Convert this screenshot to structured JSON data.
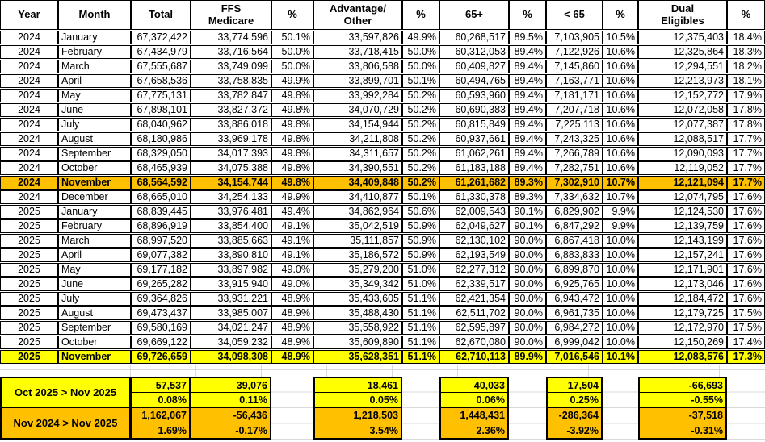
{
  "colors": {
    "row_highlight_2024_nov": "#FFC000",
    "row_highlight_2025_nov": "#FFFF00",
    "summary_oct_block": "#FFFF00",
    "summary_nov_block": "#FFC000",
    "border": "#000000",
    "gridline": "#DADADA"
  },
  "table": {
    "columns": [
      {
        "label": "Year"
      },
      {
        "label": "Month"
      },
      {
        "label": "Total"
      },
      {
        "label": "FFS\nMedicare"
      },
      {
        "label": "%"
      },
      {
        "label": "Advantage/\nOther"
      },
      {
        "label": "%"
      },
      {
        "label": "65+"
      },
      {
        "label": "%"
      },
      {
        "label": "< 65"
      },
      {
        "label": "%"
      },
      {
        "label": "Dual\nEligibles"
      },
      {
        "label": "%"
      }
    ],
    "rows": [
      {
        "hl": "",
        "cells": [
          "2024",
          "January",
          "67,372,422",
          "33,774,596",
          "50.1%",
          "33,597,826",
          "49.9%",
          "60,268,517",
          "89.5%",
          "7,103,905",
          "10.5%",
          "12,375,403",
          "18.4%"
        ]
      },
      {
        "hl": "",
        "cells": [
          "2024",
          "February",
          "67,434,979",
          "33,716,564",
          "50.0%",
          "33,718,415",
          "50.0%",
          "60,312,053",
          "89.4%",
          "7,122,926",
          "10.6%",
          "12,325,864",
          "18.3%"
        ]
      },
      {
        "hl": "",
        "cells": [
          "2024",
          "March",
          "67,555,687",
          "33,749,099",
          "50.0%",
          "33,806,588",
          "50.0%",
          "60,409,827",
          "89.4%",
          "7,145,860",
          "10.6%",
          "12,294,551",
          "18.2%"
        ]
      },
      {
        "hl": "",
        "cells": [
          "2024",
          "April",
          "67,658,536",
          "33,758,835",
          "49.9%",
          "33,899,701",
          "50.1%",
          "60,494,765",
          "89.4%",
          "7,163,771",
          "10.6%",
          "12,213,973",
          "18.1%"
        ]
      },
      {
        "hl": "",
        "cells": [
          "2024",
          "May",
          "67,775,131",
          "33,782,847",
          "49.8%",
          "33,992,284",
          "50.2%",
          "60,593,960",
          "89.4%",
          "7,181,171",
          "10.6%",
          "12,152,772",
          "17.9%"
        ]
      },
      {
        "hl": "",
        "cells": [
          "2024",
          "June",
          "67,898,101",
          "33,827,372",
          "49.8%",
          "34,070,729",
          "50.2%",
          "60,690,383",
          "89.4%",
          "7,207,718",
          "10.6%",
          "12,072,058",
          "17.8%"
        ]
      },
      {
        "hl": "",
        "cells": [
          "2024",
          "July",
          "68,040,962",
          "33,886,018",
          "49.8%",
          "34,154,944",
          "50.2%",
          "60,815,849",
          "89.4%",
          "7,225,113",
          "10.6%",
          "12,077,387",
          "17.8%"
        ]
      },
      {
        "hl": "",
        "cells": [
          "2024",
          "August",
          "68,180,986",
          "33,969,178",
          "49.8%",
          "34,211,808",
          "50.2%",
          "60,937,661",
          "89.4%",
          "7,243,325",
          "10.6%",
          "12,088,517",
          "17.7%"
        ]
      },
      {
        "hl": "",
        "cells": [
          "2024",
          "September",
          "68,329,050",
          "34,017,393",
          "49.8%",
          "34,311,657",
          "50.2%",
          "61,062,261",
          "89.4%",
          "7,266,789",
          "10.6%",
          "12,090,093",
          "17.7%"
        ]
      },
      {
        "hl": "",
        "cells": [
          "2024",
          "October",
          "68,465,939",
          "34,075,388",
          "49.8%",
          "34,390,551",
          "50.2%",
          "61,183,188",
          "89.4%",
          "7,282,751",
          "10.6%",
          "12,119,052",
          "17.7%"
        ]
      },
      {
        "hl": "orange",
        "cells": [
          "2024",
          "November",
          "68,564,592",
          "34,154,744",
          "49.8%",
          "34,409,848",
          "50.2%",
          "61,261,682",
          "89.3%",
          "7,302,910",
          "10.7%",
          "12,121,094",
          "17.7%"
        ]
      },
      {
        "hl": "",
        "cells": [
          "2024",
          "December",
          "68,665,010",
          "34,254,133",
          "49.9%",
          "34,410,877",
          "50.1%",
          "61,330,378",
          "89.3%",
          "7,334,632",
          "10.7%",
          "12,074,795",
          "17.6%"
        ]
      },
      {
        "hl": "",
        "cells": [
          "2025",
          "January",
          "68,839,445",
          "33,976,481",
          "49.4%",
          "34,862,964",
          "50.6%",
          "62,009,543",
          "90.1%",
          "6,829,902",
          "9.9%",
          "12,124,530",
          "17.6%"
        ]
      },
      {
        "hl": "",
        "cells": [
          "2025",
          "February",
          "68,896,919",
          "33,854,400",
          "49.1%",
          "35,042,519",
          "50.9%",
          "62,049,627",
          "90.1%",
          "6,847,292",
          "9.9%",
          "12,139,759",
          "17.6%"
        ]
      },
      {
        "hl": "",
        "cells": [
          "2025",
          "March",
          "68,997,520",
          "33,885,663",
          "49.1%",
          "35,111,857",
          "50.9%",
          "62,130,102",
          "90.0%",
          "6,867,418",
          "10.0%",
          "12,143,199",
          "17.6%"
        ]
      },
      {
        "hl": "",
        "cells": [
          "2025",
          "April",
          "69,077,382",
          "33,890,810",
          "49.1%",
          "35,186,572",
          "50.9%",
          "62,193,549",
          "90.0%",
          "6,883,833",
          "10.0%",
          "12,157,241",
          "17.6%"
        ]
      },
      {
        "hl": "",
        "cells": [
          "2025",
          "May",
          "69,177,182",
          "33,897,982",
          "49.0%",
          "35,279,200",
          "51.0%",
          "62,277,312",
          "90.0%",
          "6,899,870",
          "10.0%",
          "12,171,901",
          "17.6%"
        ]
      },
      {
        "hl": "",
        "cells": [
          "2025",
          "June",
          "69,265,282",
          "33,915,940",
          "49.0%",
          "35,349,342",
          "51.0%",
          "62,339,517",
          "90.0%",
          "6,925,765",
          "10.0%",
          "12,173,046",
          "17.6%"
        ]
      },
      {
        "hl": "",
        "cells": [
          "2025",
          "July",
          "69,364,826",
          "33,931,221",
          "48.9%",
          "35,433,605",
          "51.1%",
          "62,421,354",
          "90.0%",
          "6,943,472",
          "10.0%",
          "12,184,472",
          "17.6%"
        ]
      },
      {
        "hl": "",
        "cells": [
          "2025",
          "August",
          "69,473,437",
          "33,985,007",
          "48.9%",
          "35,488,430",
          "51.1%",
          "62,511,702",
          "90.0%",
          "6,961,735",
          "10.0%",
          "12,179,725",
          "17.5%"
        ]
      },
      {
        "hl": "",
        "cells": [
          "2025",
          "September",
          "69,580,169",
          "34,021,247",
          "48.9%",
          "35,558,922",
          "51.1%",
          "62,595,897",
          "90.0%",
          "6,984,272",
          "10.0%",
          "12,172,970",
          "17.5%"
        ]
      },
      {
        "hl": "",
        "cells": [
          "2025",
          "October",
          "69,669,122",
          "34,059,232",
          "48.9%",
          "35,609,890",
          "51.1%",
          "62,670,080",
          "90.0%",
          "6,999,042",
          "10.0%",
          "12,150,269",
          "17.4%"
        ]
      },
      {
        "hl": "yellow",
        "cells": [
          "2025",
          "November",
          "69,726,659",
          "34,098,308",
          "48.9%",
          "35,628,351",
          "51.1%",
          "62,710,113",
          "89.9%",
          "7,016,546",
          "10.1%",
          "12,083,576",
          "17.3%"
        ]
      }
    ]
  },
  "summary": {
    "blocks": [
      {
        "label": "Oct 2025 > Nov 2025",
        "color": "#FFFF00",
        "values": [
          "57,537",
          "39,076",
          "18,461",
          "40,033",
          "17,504",
          "-66,693"
        ],
        "pcts": [
          "0.08%",
          "0.11%",
          "0.05%",
          "0.06%",
          "0.25%",
          "-0.55%"
        ]
      },
      {
        "label": "Nov 2024 > Nov 2025",
        "color": "#FFC000",
        "values": [
          "1,162,067",
          "-56,436",
          "1,218,503",
          "1,448,431",
          "-286,364",
          "-37,518"
        ],
        "pcts": [
          "1.69%",
          "-0.17%",
          "3.54%",
          "2.36%",
          "-3.92%",
          "-0.31%"
        ]
      }
    ]
  }
}
